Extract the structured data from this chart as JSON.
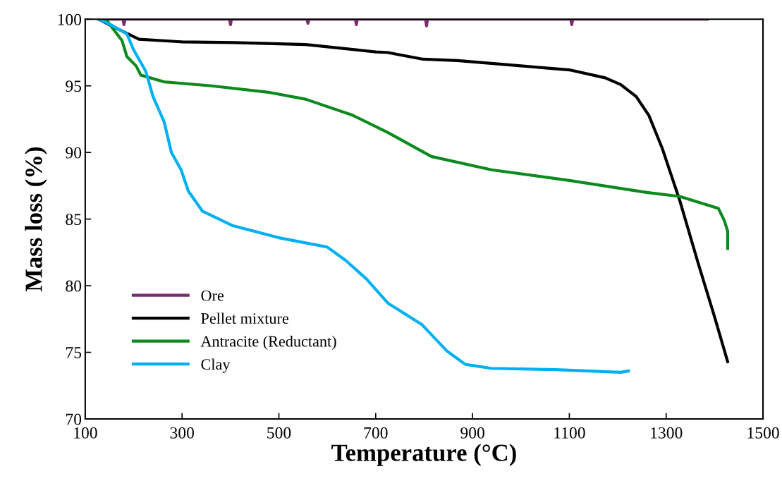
{
  "chart_data": {
    "type": "line",
    "xlabel": "Temperature (°C)",
    "ylabel": "Mass loss (%)",
    "xlim": [
      100,
      1500
    ],
    "xticks": [
      100,
      300,
      500,
      700,
      900,
      1100,
      1300,
      1500
    ],
    "ylim": [
      70,
      100
    ],
    "yticks": [
      70,
      75,
      80,
      85,
      90,
      95,
      100
    ],
    "grid": false,
    "legend": "bottom left",
    "marker": "none",
    "line_style": "solid",
    "series": [
      {
        "name": "Ore",
        "color": "#7b2c6e",
        "x": [
          128,
          178,
          180,
          182,
          398,
          400,
          402,
          558,
          560,
          562,
          658,
          660,
          662,
          803,
          805,
          807,
          1103,
          1105,
          1107,
          1385
        ],
        "values": [
          100,
          100,
          99.6,
          100,
          100,
          99.6,
          100,
          100,
          99.7,
          100,
          100,
          99.6,
          100,
          100,
          99.5,
          100,
          100,
          99.6,
          100,
          100
        ]
      },
      {
        "name": "Pellet mixture",
        "color": "#000000",
        "x": [
          128,
          160,
          211,
          300,
          406,
          555,
          700,
          725,
          798,
          869,
          1000,
          1100,
          1174,
          1206,
          1238,
          1264,
          1292,
          1328,
          1366,
          1398,
          1427
        ],
        "values": [
          100,
          99.4,
          98.5,
          98.3,
          98.25,
          98.1,
          97.55,
          97.5,
          97.0,
          96.9,
          96.5,
          96.2,
          95.6,
          95.1,
          94.2,
          92.8,
          90.3,
          86.4,
          81.7,
          77.9,
          74.3
        ]
      },
      {
        "name": "Antracite (Reductant)",
        "color": "#0c8a1e",
        "x": [
          128,
          145,
          157,
          176,
          186,
          205,
          215,
          263,
          361,
          482,
          555,
          652,
          725,
          815,
          939,
          1100,
          1260,
          1328,
          1408,
          1420,
          1427,
          1427
        ],
        "values": [
          100,
          99.9,
          99.3,
          98.4,
          97.2,
          96.5,
          95.8,
          95.3,
          95.0,
          94.5,
          94.0,
          92.8,
          91.5,
          89.7,
          88.7,
          87.9,
          87.0,
          86.7,
          85.8,
          84.9,
          84.1,
          82.8
        ]
      },
      {
        "name": "Clay",
        "color": "#00b0f0",
        "x": [
          128,
          152,
          186,
          200,
          225,
          240,
          263,
          278,
          298,
          313,
          342,
          405,
          500,
          600,
          638,
          681,
          725,
          795,
          847,
          885,
          939,
          1072,
          1206,
          1222
        ],
        "values": [
          100,
          99.6,
          98.9,
          97.7,
          96.1,
          94.2,
          92.3,
          90.0,
          88.7,
          87.1,
          85.6,
          84.5,
          83.6,
          82.9,
          81.9,
          80.5,
          78.7,
          77.1,
          75.1,
          74.1,
          73.8,
          73.7,
          73.5,
          73.6
        ]
      }
    ]
  }
}
